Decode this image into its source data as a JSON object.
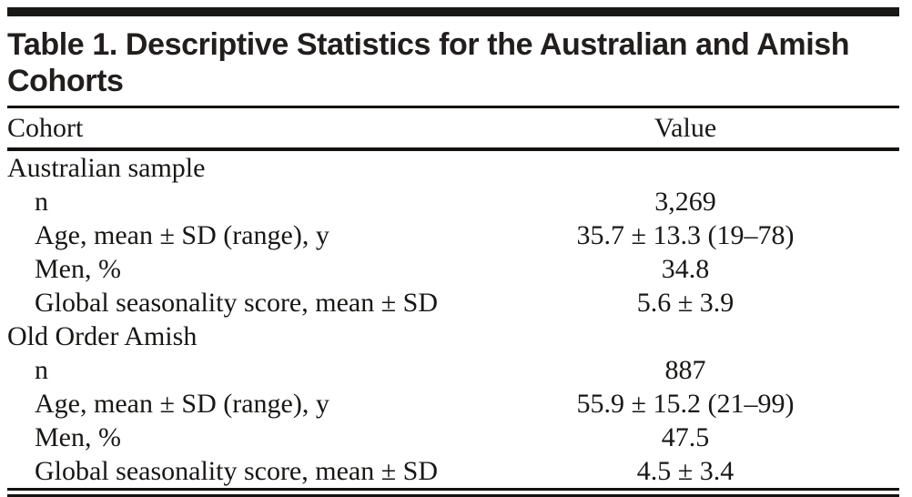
{
  "title": {
    "line1": "Table 1. Descriptive Statistics for the Australian and Amish",
    "line2": "Cohorts"
  },
  "table": {
    "columns": {
      "label": "Cohort",
      "value": "Value"
    },
    "rows": [
      {
        "label": "Australian sample",
        "value": "",
        "indent": false
      },
      {
        "label": "n",
        "value": "3,269",
        "indent": true
      },
      {
        "label": "Age, mean ± SD (range), y",
        "value": "35.7 ± 13.3 (19–78)",
        "indent": true
      },
      {
        "label": "Men, %",
        "value": "34.8",
        "indent": true
      },
      {
        "label": "Global seasonality score, mean ± SD",
        "value": "5.6 ± 3.9",
        "indent": true
      },
      {
        "label": "Old Order Amish",
        "value": "",
        "indent": false
      },
      {
        "label": "n",
        "value": "887",
        "indent": true
      },
      {
        "label": "Age, mean ± SD (range), y",
        "value": "55.9 ± 15.2 (21–99)",
        "indent": true
      },
      {
        "label": "Men, %",
        "value": "47.5",
        "indent": true
      },
      {
        "label": "Global seasonality score, mean ± SD",
        "value": "4.5 ± 3.4",
        "indent": true
      }
    ]
  }
}
